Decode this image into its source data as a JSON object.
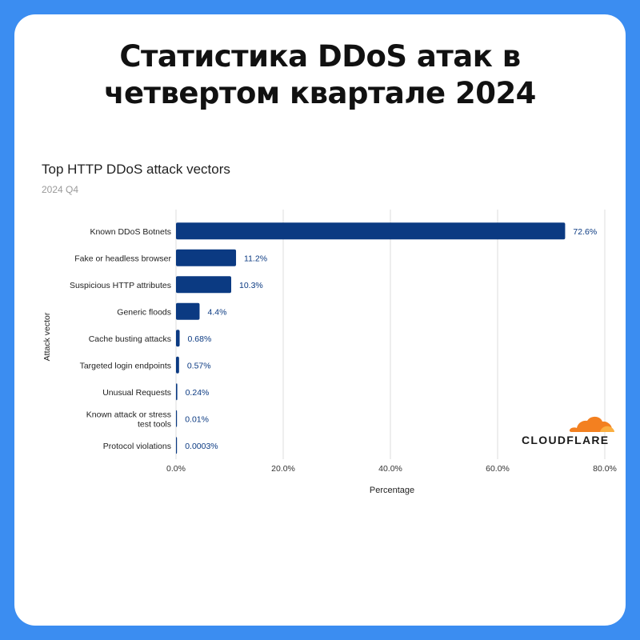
{
  "headline": "Статистика DDoS атак в четвертом квартале 2024",
  "logo": {
    "text": "CLOUDFLARE",
    "icon": "cloud-icon",
    "color": "#f38020"
  },
  "chart_data": {
    "type": "bar",
    "orientation": "horizontal",
    "title": "Top HTTP DDoS attack vectors",
    "subtitle": "2024 Q4",
    "xlabel": "Percentage",
    "ylabel": "Attack vector",
    "xlim": [
      0,
      80
    ],
    "xticks": [
      "0.0%",
      "20.0%",
      "40.0%",
      "60.0%",
      "80.0%"
    ],
    "grid": true,
    "bar_color": "#0b3a82",
    "categories": [
      "Known DDoS Botnets",
      "Fake or headless browser",
      "Suspicious HTTP attributes",
      "Generic floods",
      "Cache busting attacks",
      "Targeted login endpoints",
      "Unusual Requests",
      "Known attack or stress test tools",
      "Protocol violations"
    ],
    "values": [
      72.6,
      11.2,
      10.3,
      4.4,
      0.68,
      0.57,
      0.24,
      0.01,
      0.0003
    ],
    "data_labels": [
      "72.6%",
      "11.2%",
      "10.3%",
      "4.4%",
      "0.68%",
      "0.57%",
      "0.24%",
      "0.01%",
      "0.0003%"
    ]
  }
}
